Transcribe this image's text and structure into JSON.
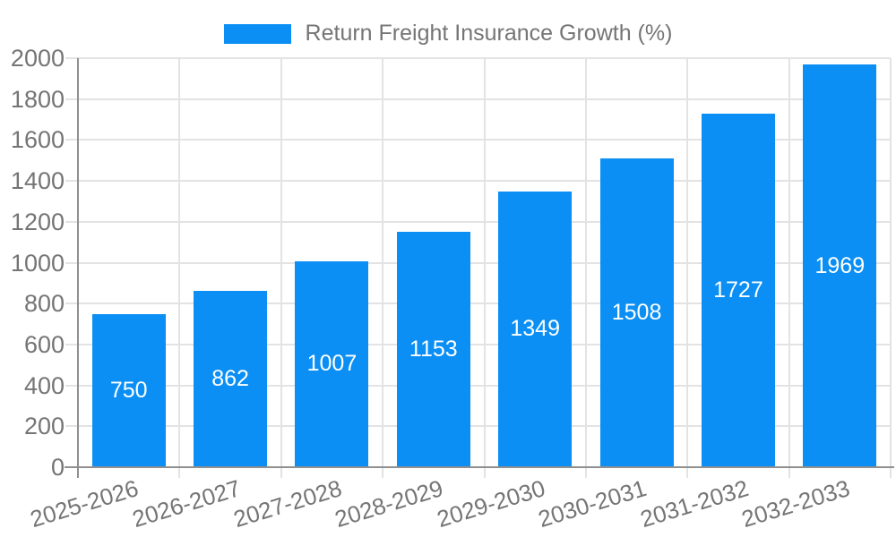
{
  "chart_data": {
    "type": "bar",
    "title": "Return Freight Insurance Growth (%)",
    "legend": {
      "position": "top",
      "label": "Return Freight Insurance Growth (%)"
    },
    "categories": [
      "2025-2026",
      "2026-2027",
      "2027-2028",
      "2028-2029",
      "2029-2030",
      "2030-2031",
      "2031-2032",
      "2032-2033"
    ],
    "values": [
      750,
      862,
      1007,
      1153,
      1349,
      1508,
      1727,
      1969
    ],
    "xlabel": "",
    "ylabel": "",
    "ylim": [
      0,
      2000
    ],
    "y_ticks": [
      0,
      200,
      400,
      600,
      800,
      1000,
      1200,
      1400,
      1600,
      1800,
      2000
    ],
    "grid": true,
    "bar_labels_shown": true,
    "colors": {
      "bar": "#0B8FF4",
      "bar_value_text": "#ffffff",
      "axis_text": "#757575",
      "grid_line": "#e3e3e3",
      "axis_line": "#909090",
      "background": "#ffffff"
    }
  }
}
